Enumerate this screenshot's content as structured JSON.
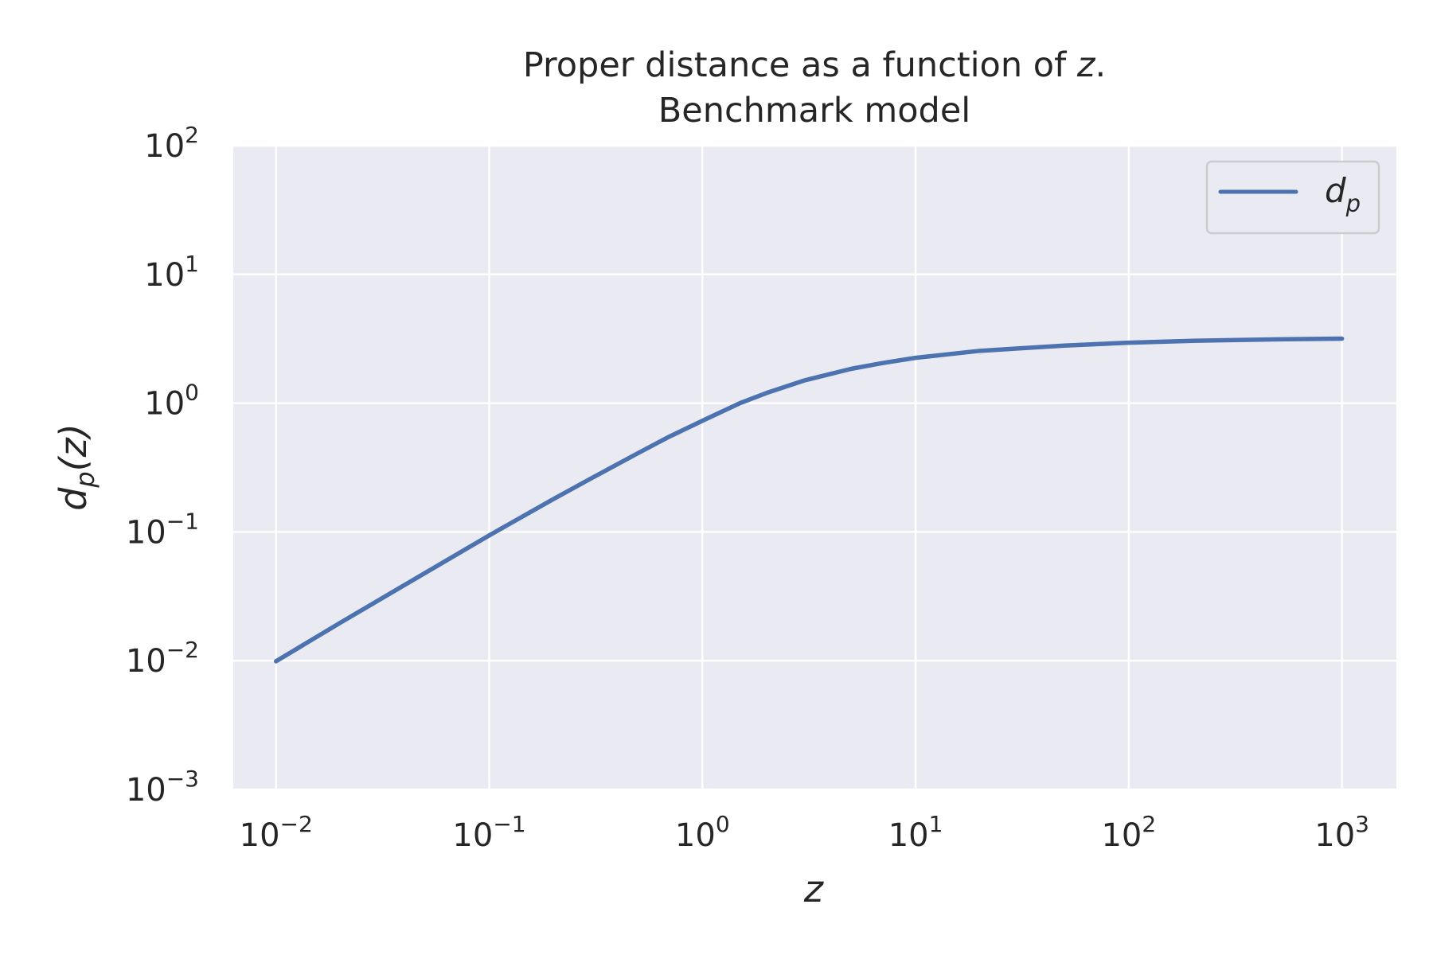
{
  "chart_data": {
    "type": "line",
    "title_line1": "Proper distance as a function of ",
    "title_var": "z",
    "title_line1_end": ".",
    "title_line2": "Benchmark model",
    "xlabel": "z",
    "ylabel_main": "d",
    "ylabel_sub": "p",
    "ylabel_arg_open": "(",
    "ylabel_arg": "z",
    "ylabel_arg_close": ")",
    "x_scale": "log",
    "y_scale": "log",
    "xlim": [
      0.0063,
      1800
    ],
    "ylim": [
      0.001,
      100
    ],
    "x_ticks": [
      {
        "base": "10",
        "exp": "−2",
        "value": 0.01
      },
      {
        "base": "10",
        "exp": "−1",
        "value": 0.1
      },
      {
        "base": "10",
        "exp": "0",
        "value": 1
      },
      {
        "base": "10",
        "exp": "1",
        "value": 10
      },
      {
        "base": "10",
        "exp": "2",
        "value": 100
      },
      {
        "base": "10",
        "exp": "3",
        "value": 1000
      }
    ],
    "y_ticks": [
      {
        "base": "10",
        "exp": "−3",
        "value": 0.001
      },
      {
        "base": "10",
        "exp": "−2",
        "value": 0.01
      },
      {
        "base": "10",
        "exp": "−1",
        "value": 0.1
      },
      {
        "base": "10",
        "exp": "0",
        "value": 1
      },
      {
        "base": "10",
        "exp": "1",
        "value": 10
      },
      {
        "base": "10",
        "exp": "2",
        "value": 100
      }
    ],
    "grid": true,
    "legend_position": "top-right",
    "series": [
      {
        "name_main": "d",
        "name_sub": "p",
        "color": "#4c72b0",
        "x": [
          0.01,
          0.02,
          0.05,
          0.1,
          0.2,
          0.3,
          0.5,
          0.7,
          1.0,
          1.5,
          2.0,
          3.0,
          5.0,
          7.0,
          10,
          20,
          50,
          100,
          200,
          500,
          1000
        ],
        "y": [
          0.0099,
          0.0197,
          0.048,
          0.094,
          0.18,
          0.26,
          0.41,
          0.55,
          0.73,
          1.0,
          1.2,
          1.5,
          1.85,
          2.05,
          2.25,
          2.55,
          2.8,
          2.95,
          3.05,
          3.13,
          3.17
        ]
      }
    ]
  },
  "colors": {
    "plot_background": "#eaeaf2",
    "grid": "#ffffff",
    "text": "#262626",
    "legend_border": "#cccccc"
  }
}
